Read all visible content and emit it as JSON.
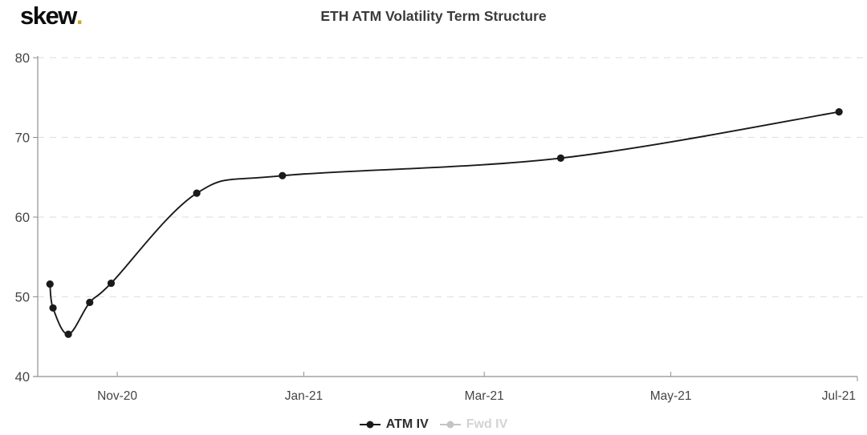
{
  "brand": {
    "name": "skew",
    "dot": ".",
    "dot_color": "#d2a42e",
    "text_color": "#0d0d0d"
  },
  "chart_data": {
    "type": "line",
    "title": "ETH ATM Volatility Term Structure",
    "x_type": "date",
    "x_range": [
      "2020-10-06",
      "2021-07-01"
    ],
    "y_range": [
      40,
      80
    ],
    "y_ticks": [
      40,
      50,
      60,
      70,
      80
    ],
    "x_ticks": [
      {
        "label": "Nov-20",
        "date": "2020-11-01"
      },
      {
        "label": "Jan-21",
        "date": "2021-01-01"
      },
      {
        "label": "Mar-21",
        "date": "2021-03-01"
      },
      {
        "label": "May-21",
        "date": "2021-05-01"
      },
      {
        "label": "Jul-21",
        "date": "2021-07-01"
      }
    ],
    "grid": "horizontal-dashed",
    "legend_position": "bottom-center",
    "series": [
      {
        "name": "ATM IV",
        "color": "#1a1a1a",
        "visible": true,
        "x": [
          "2020-10-10",
          "2020-10-11",
          "2020-10-16",
          "2020-10-23",
          "2020-10-30",
          "2020-11-27",
          "2020-12-25",
          "2021-03-26",
          "2021-06-25"
        ],
        "values": [
          51.6,
          48.6,
          45.3,
          49.3,
          51.7,
          63.0,
          65.2,
          67.4,
          73.2
        ]
      },
      {
        "name": "Fwd IV",
        "color": "#c4c4c4",
        "visible": false,
        "x": [],
        "values": []
      }
    ]
  },
  "colors": {
    "axis_line": "#8f8f8f",
    "tick_label": "#444444",
    "gridline": "#e2e2e2",
    "title_text": "#3b3b3b",
    "legend_disabled_text": "#d3d3d3"
  }
}
